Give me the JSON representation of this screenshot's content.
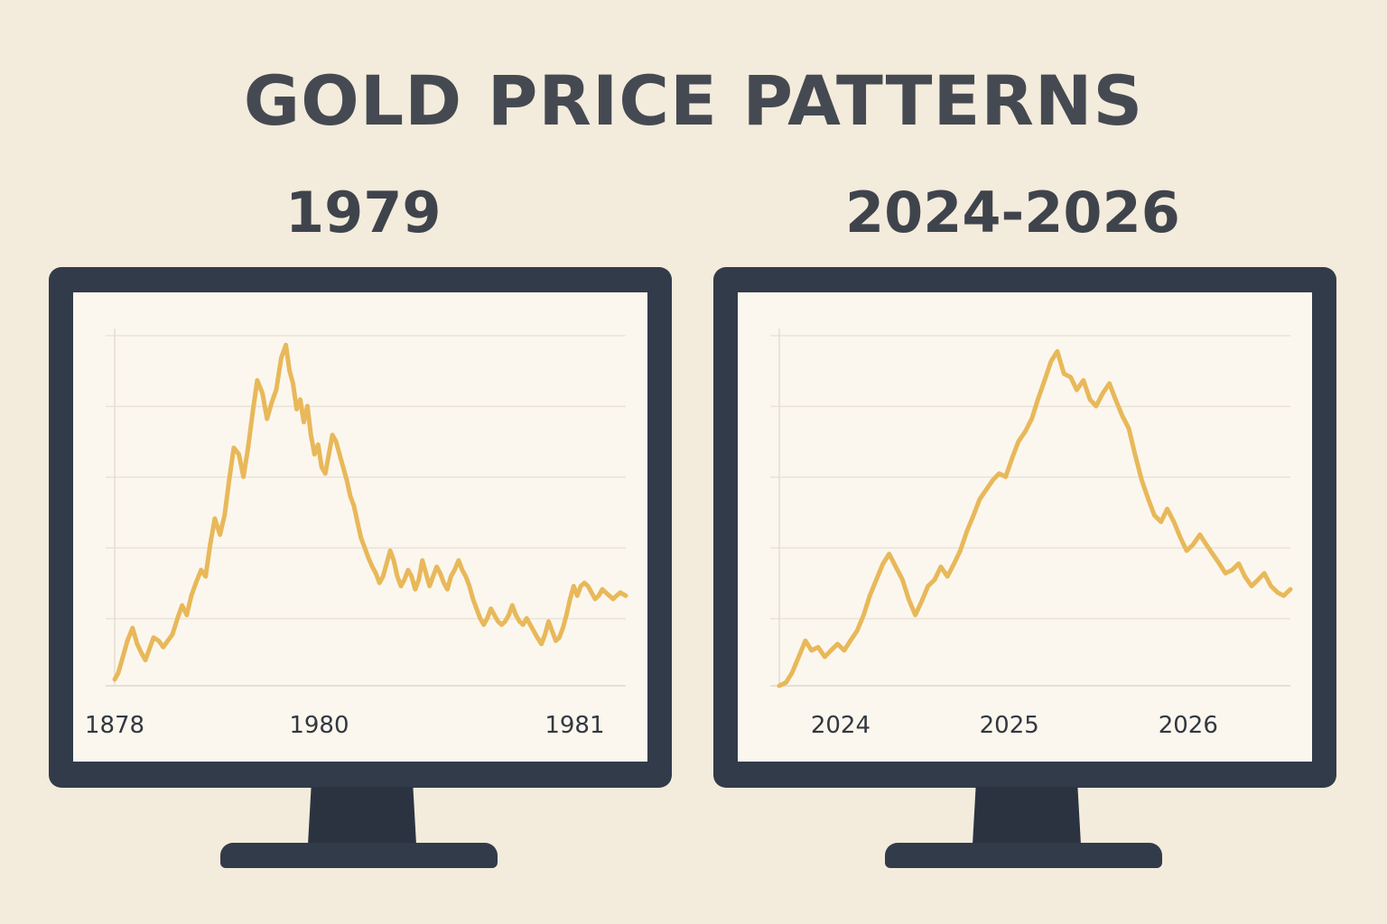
{
  "title": "GOLD PRICE PATTERNS",
  "colors": {
    "background": "#f3ebdc",
    "title_text": "#454a52",
    "monitor": "#323b49",
    "screen": "#fbf7ee",
    "grid": "#e9e3d8",
    "series": "#e8b85a"
  },
  "panels": [
    {
      "heading": "1979",
      "x_tick_labels": [
        "1878",
        "1980",
        "1981"
      ]
    },
    {
      "heading": "2024-2026",
      "x_tick_labels": [
        "2024",
        "2025",
        "2026"
      ]
    }
  ],
  "chart_data": [
    {
      "type": "line",
      "title": "1979",
      "xlabel": "",
      "ylabel": "",
      "x_ticks": [
        0,
        0.4,
        0.9
      ],
      "x_tick_labels": [
        "1878",
        "1980",
        "1981"
      ],
      "xlim": [
        0,
        1
      ],
      "ylim": [
        0,
        5.5
      ],
      "grid": true,
      "y_tick_labels_shown": false,
      "series": [
        {
          "x": [
            0.0,
            0.007,
            0.016,
            0.025,
            0.035,
            0.044,
            0.053,
            0.06,
            0.067,
            0.076,
            0.086,
            0.095,
            0.104,
            0.113,
            0.123,
            0.132,
            0.141,
            0.15,
            0.159,
            0.169,
            0.178,
            0.187,
            0.196,
            0.206,
            0.215,
            0.224,
            0.233,
            0.243,
            0.252,
            0.261,
            0.27,
            0.279,
            0.289,
            0.298,
            0.307,
            0.316,
            0.326,
            0.335,
            0.342,
            0.349,
            0.356,
            0.363,
            0.37,
            0.377,
            0.384,
            0.391,
            0.398,
            0.405,
            0.412,
            0.419,
            0.426,
            0.433,
            0.44,
            0.447,
            0.454,
            0.461,
            0.468,
            0.475,
            0.482,
            0.489,
            0.496,
            0.504,
            0.511,
            0.518,
            0.525,
            0.532,
            0.539,
            0.546,
            0.553,
            0.56,
            0.567,
            0.574,
            0.581,
            0.588,
            0.595,
            0.602,
            0.609,
            0.616,
            0.623,
            0.63,
            0.637,
            0.644,
            0.651,
            0.658,
            0.665,
            0.673,
            0.68,
            0.687,
            0.694,
            0.701,
            0.708,
            0.715,
            0.722,
            0.729,
            0.736,
            0.743,
            0.75,
            0.757,
            0.764,
            0.771,
            0.778,
            0.785,
            0.792,
            0.799,
            0.806,
            0.813,
            0.82,
            0.827,
            0.835,
            0.842,
            0.849,
            0.856,
            0.863,
            0.87,
            0.877,
            0.884,
            0.891,
            0.898,
            0.905,
            0.912,
            0.919,
            0.926,
            0.933,
            0.94,
            0.947,
            0.954,
            0.961,
            0.968,
            0.975,
            0.982,
            0.989,
            1.0
          ],
          "values": [
            0.1,
            0.2,
            0.45,
            0.7,
            0.9,
            0.65,
            0.5,
            0.4,
            0.55,
            0.75,
            0.7,
            0.6,
            0.7,
            0.8,
            1.05,
            1.25,
            1.1,
            1.4,
            1.6,
            1.8,
            1.7,
            2.2,
            2.6,
            2.35,
            2.65,
            3.2,
            3.7,
            3.6,
            3.25,
            3.7,
            4.25,
            4.75,
            4.55,
            4.15,
            4.4,
            4.6,
            5.1,
            5.3,
            4.9,
            4.7,
            4.3,
            4.45,
            4.1,
            4.35,
            3.9,
            3.6,
            3.75,
            3.4,
            3.3,
            3.6,
            3.9,
            3.8,
            3.6,
            3.4,
            3.2,
            2.95,
            2.8,
            2.55,
            2.3,
            2.15,
            2.0,
            1.85,
            1.75,
            1.6,
            1.7,
            1.9,
            2.1,
            1.95,
            1.7,
            1.55,
            1.65,
            1.8,
            1.7,
            1.5,
            1.65,
            1.95,
            1.75,
            1.55,
            1.7,
            1.85,
            1.75,
            1.6,
            1.5,
            1.7,
            1.8,
            1.95,
            1.8,
            1.7,
            1.55,
            1.35,
            1.2,
            1.05,
            0.95,
            1.05,
            1.2,
            1.1,
            1.0,
            0.95,
            1.0,
            1.1,
            1.25,
            1.1,
            1.0,
            0.95,
            1.05,
            0.95,
            0.85,
            0.75,
            0.65,
            0.8,
            1.0,
            0.85,
            0.7,
            0.75,
            0.9,
            1.1,
            1.35,
            1.55,
            1.4,
            1.55,
            1.6,
            1.55,
            1.45,
            1.35,
            1.4,
            1.5,
            1.45,
            1.4,
            1.35,
            1.4,
            1.45,
            1.4
          ]
        }
      ]
    },
    {
      "type": "line",
      "title": "2024-2026",
      "xlabel": "",
      "ylabel": "",
      "x_ticks": [
        0.12,
        0.45,
        0.8
      ],
      "x_tick_labels": [
        "2024",
        "2025",
        "2026"
      ],
      "xlim": [
        0,
        1
      ],
      "ylim": [
        0,
        5.5
      ],
      "grid": true,
      "y_tick_labels_shown": false,
      "series": [
        {
          "x": [
            0.0,
            0.013,
            0.025,
            0.038,
            0.051,
            0.063,
            0.076,
            0.089,
            0.101,
            0.114,
            0.127,
            0.139,
            0.152,
            0.165,
            0.177,
            0.19,
            0.203,
            0.215,
            0.228,
            0.241,
            0.253,
            0.266,
            0.278,
            0.291,
            0.304,
            0.316,
            0.329,
            0.342,
            0.354,
            0.367,
            0.38,
            0.392,
            0.405,
            0.418,
            0.43,
            0.443,
            0.456,
            0.468,
            0.481,
            0.494,
            0.506,
            0.519,
            0.532,
            0.544,
            0.557,
            0.57,
            0.582,
            0.595,
            0.608,
            0.62,
            0.633,
            0.646,
            0.658,
            0.671,
            0.684,
            0.696,
            0.709,
            0.722,
            0.734,
            0.747,
            0.759,
            0.772,
            0.785,
            0.797,
            0.81,
            0.823,
            0.835,
            0.848,
            0.861,
            0.873,
            0.886,
            0.899,
            0.911,
            0.924,
            0.937,
            0.949,
            0.962,
            0.975,
            0.987,
            1.0
          ],
          "values": [
            0.0,
            0.05,
            0.2,
            0.45,
            0.7,
            0.55,
            0.6,
            0.45,
            0.55,
            0.65,
            0.55,
            0.7,
            0.85,
            1.1,
            1.4,
            1.65,
            1.9,
            2.05,
            1.85,
            1.65,
            1.35,
            1.1,
            1.3,
            1.55,
            1.65,
            1.85,
            1.7,
            1.9,
            2.1,
            2.4,
            2.65,
            2.9,
            3.05,
            3.2,
            3.3,
            3.25,
            3.55,
            3.8,
            3.95,
            4.15,
            4.45,
            4.75,
            5.05,
            5.2,
            4.85,
            4.8,
            4.6,
            4.75,
            4.45,
            4.35,
            4.55,
            4.7,
            4.45,
            4.2,
            4.0,
            3.6,
            3.2,
            2.9,
            2.65,
            2.55,
            2.75,
            2.55,
            2.3,
            2.1,
            2.2,
            2.35,
            2.2,
            2.05,
            1.9,
            1.75,
            1.8,
            1.9,
            1.7,
            1.55,
            1.65,
            1.75,
            1.55,
            1.45,
            1.4,
            1.5
          ]
        }
      ]
    }
  ]
}
